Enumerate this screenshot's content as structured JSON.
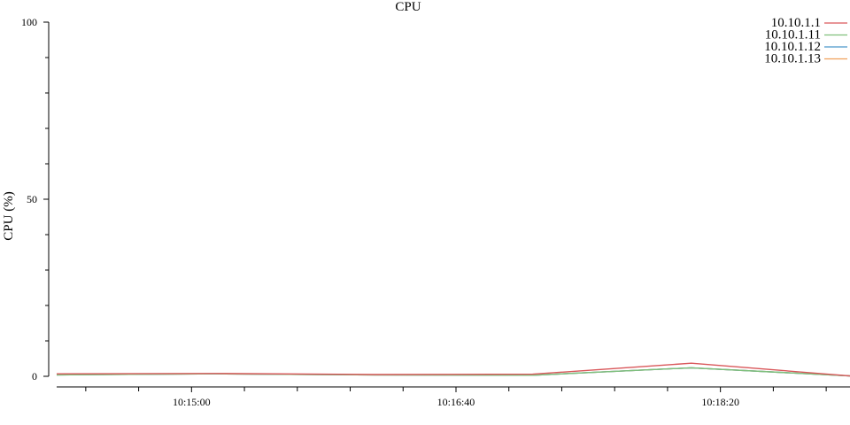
{
  "chart_data": {
    "type": "line",
    "title": "CPU",
    "xlabel": "",
    "ylabel": "CPU (%)",
    "ylim": [
      0,
      100
    ],
    "y_ticks": [
      0,
      50,
      100
    ],
    "xlim": [
      "10:14:09",
      "10:19:09"
    ],
    "x_tick_labels": [
      "10:15:00",
      "10:16:40",
      "10:18:20"
    ],
    "legend_position": "top-right",
    "grid": false,
    "x": [
      "10:14:09",
      "10:15:09",
      "10:16:09",
      "10:17:09",
      "10:18:09",
      "10:19:09"
    ],
    "series": [
      {
        "name": "10.10.1.1",
        "color": "#d9575a",
        "values": [
          0.7,
          0.8,
          0.5,
          0.6,
          3.7,
          0.1
        ]
      },
      {
        "name": "10.10.1.11",
        "color": "#7fc07b",
        "values": [
          0.4,
          0.7,
          0.4,
          0.3,
          2.4,
          0.1
        ]
      },
      {
        "name": "10.10.1.12",
        "color": "#4b97c9",
        "values": [
          0.4,
          0.7,
          0.4,
          0.3,
          2.4,
          0.1
        ]
      },
      {
        "name": "10.10.1.13",
        "color": "#f0a15a",
        "values": [
          0.4,
          0.7,
          0.4,
          0.3,
          2.4,
          0.1
        ]
      }
    ]
  }
}
